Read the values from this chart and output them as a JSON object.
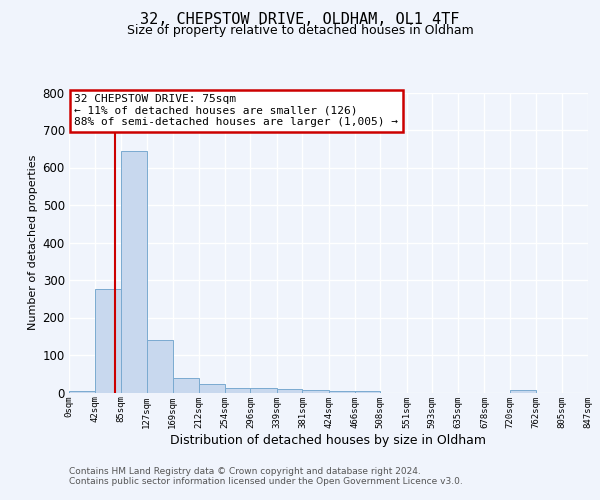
{
  "title": "32, CHEPSTOW DRIVE, OLDHAM, OL1 4TF",
  "subtitle": "Size of property relative to detached houses in Oldham",
  "xlabel": "Distribution of detached houses by size in Oldham",
  "ylabel": "Number of detached properties",
  "bin_edges": [
    0,
    42,
    85,
    127,
    169,
    212,
    254,
    296,
    339,
    381,
    424,
    466,
    508,
    551,
    593,
    635,
    678,
    720,
    762,
    805,
    847
  ],
  "bar_heights": [
    5,
    275,
    645,
    140,
    38,
    22,
    13,
    12,
    10,
    6,
    5,
    5,
    0,
    0,
    0,
    0,
    0,
    8,
    0,
    0
  ],
  "bar_color": "#c8d8ee",
  "bar_edge_color": "#7aaad0",
  "bar_linewidth": 0.7,
  "bg_color": "#f0f4fc",
  "plot_bg_color": "#f0f4fc",
  "grid_color": "#ffffff",
  "property_line_x": 75,
  "property_line_color": "#cc0000",
  "ylim_max": 800,
  "xlim_max": 847,
  "annotation_line1": "32 CHEPSTOW DRIVE: 75sqm",
  "annotation_line2": "← 11% of detached houses are smaller (126)",
  "annotation_line3": "88% of semi-detached houses are larger (1,005) →",
  "annotation_box_edgecolor": "#cc0000",
  "footer_line1": "Contains HM Land Registry data © Crown copyright and database right 2024.",
  "footer_line2": "Contains public sector information licensed under the Open Government Licence v3.0.",
  "tick_labels": [
    "0sqm",
    "42sqm",
    "85sqm",
    "127sqm",
    "169sqm",
    "212sqm",
    "254sqm",
    "296sqm",
    "339sqm",
    "381sqm",
    "424sqm",
    "466sqm",
    "508sqm",
    "551sqm",
    "593sqm",
    "635sqm",
    "678sqm",
    "720sqm",
    "762sqm",
    "805sqm",
    "847sqm"
  ],
  "yticks": [
    0,
    100,
    200,
    300,
    400,
    500,
    600,
    700,
    800
  ],
  "title_fontsize": 11,
  "subtitle_fontsize": 9,
  "ylabel_fontsize": 8,
  "xlabel_fontsize": 9,
  "ytick_fontsize": 8.5,
  "xtick_fontsize": 6.5,
  "annotation_fontsize": 8,
  "footer_fontsize": 6.5
}
